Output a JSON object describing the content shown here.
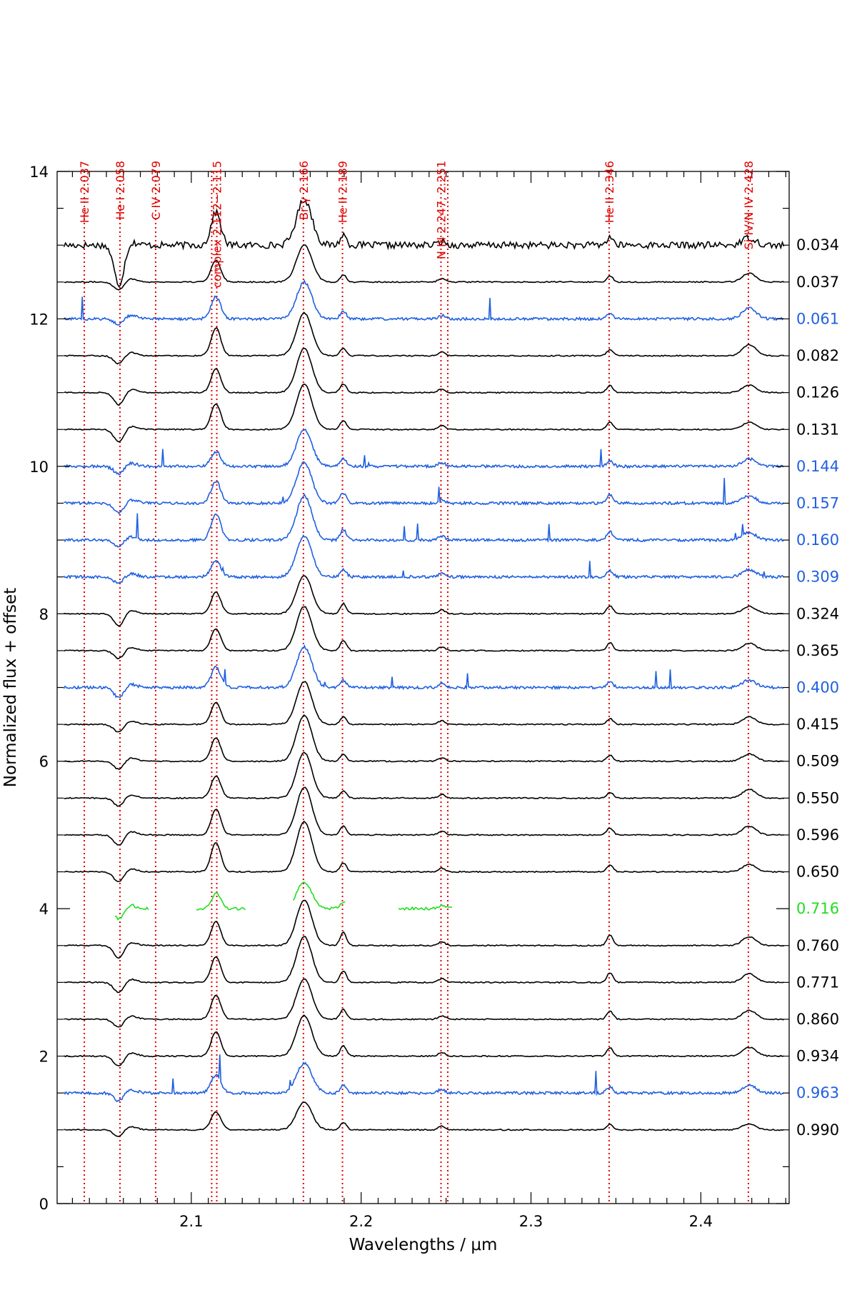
{
  "chart_data": {
    "type": "line",
    "title": "",
    "xlabel": "Wavelengths / μm",
    "ylabel": "Normalized flux + offset",
    "xlim": [
      2.021,
      2.452
    ],
    "ylim": [
      0,
      14
    ],
    "x_ticks": [
      2.1,
      2.2,
      2.3,
      2.4
    ],
    "x_tick_labels": [
      "2.1",
      "2.2",
      "2.3",
      "2.4"
    ],
    "y_ticks": [
      0,
      2,
      4,
      6,
      8,
      10,
      12,
      14
    ],
    "y_tick_labels": [
      "0",
      "2",
      "4",
      "6",
      "8",
      "10",
      "12",
      "14"
    ],
    "grid": false,
    "colors": {
      "black": "#000000",
      "blue": "#1f5fe0",
      "green": "#22dd22",
      "line_marker": "#e00000"
    },
    "line_markers": [
      {
        "x": 2.037,
        "label": "He II 2.037"
      },
      {
        "x": 2.058,
        "label": "He I 2.058"
      },
      {
        "x": 2.079,
        "label": "C IV 2.079"
      },
      {
        "x": 2.112,
        "label": ""
      },
      {
        "x": 2.115,
        "label": "complex 2.112−2.115"
      },
      {
        "x": 2.166,
        "label": "Br γ 2.166"
      },
      {
        "x": 2.189,
        "label": "He II 2.189"
      },
      {
        "x": 2.247,
        "label": "N III 2.247, 2.251"
      },
      {
        "x": 2.251,
        "label": ""
      },
      {
        "x": 2.346,
        "label": "He II 2.346"
      },
      {
        "x": 2.428,
        "label": "Si IV/N IV 2.428"
      }
    ],
    "series": [
      {
        "name": "0.034",
        "offset": 13.0,
        "color": "black",
        "noise": 0.045,
        "brg": 0.62,
        "cplx": 0.45,
        "heii": 0.14,
        "siiv": 0.1,
        "hei_abs": 0.55
      },
      {
        "name": "0.037",
        "offset": 12.5,
        "color": "black",
        "noise": 0.008,
        "brg": 0.5,
        "cplx": 0.3,
        "heii": 0.1,
        "siiv": 0.12,
        "hei_abs": 0.12
      },
      {
        "name": "0.061",
        "offset": 12.0,
        "color": "blue",
        "noise": 0.018,
        "brg": 0.5,
        "cplx": 0.3,
        "heii": 0.1,
        "siiv": 0.15,
        "hei_abs": 0.08
      },
      {
        "name": "0.082",
        "offset": 11.5,
        "color": "black",
        "noise": 0.008,
        "brg": 0.58,
        "cplx": 0.38,
        "heii": 0.1,
        "siiv": 0.15,
        "hei_abs": 0.12
      },
      {
        "name": "0.126",
        "offset": 11.0,
        "color": "black",
        "noise": 0.008,
        "brg": 0.6,
        "cplx": 0.33,
        "heii": 0.12,
        "siiv": 0.1,
        "hei_abs": 0.18
      },
      {
        "name": "0.131",
        "offset": 10.5,
        "color": "black",
        "noise": 0.008,
        "brg": 0.62,
        "cplx": 0.35,
        "heii": 0.12,
        "siiv": 0.1,
        "hei_abs": 0.18
      },
      {
        "name": "0.144",
        "offset": 10.0,
        "color": "blue",
        "noise": 0.018,
        "brg": 0.5,
        "cplx": 0.2,
        "heii": 0.1,
        "siiv": 0.1,
        "hei_abs": 0.12
      },
      {
        "name": "0.157",
        "offset": 9.5,
        "color": "blue",
        "noise": 0.018,
        "brg": 0.55,
        "cplx": 0.3,
        "heii": 0.14,
        "siiv": 0.1,
        "hei_abs": 0.15
      },
      {
        "name": "0.160",
        "offset": 9.0,
        "color": "blue",
        "noise": 0.018,
        "brg": 0.6,
        "cplx": 0.35,
        "heii": 0.14,
        "siiv": 0.1,
        "hei_abs": 0.1
      },
      {
        "name": "0.309",
        "offset": 8.5,
        "color": "blue",
        "noise": 0.018,
        "brg": 0.55,
        "cplx": 0.22,
        "heii": 0.1,
        "siiv": 0.1,
        "hei_abs": 0.1
      },
      {
        "name": "0.324",
        "offset": 8.0,
        "color": "black",
        "noise": 0.008,
        "brg": 0.52,
        "cplx": 0.3,
        "heii": 0.14,
        "siiv": 0.1,
        "hei_abs": 0.18
      },
      {
        "name": "0.365",
        "offset": 7.5,
        "color": "black",
        "noise": 0.008,
        "brg": 0.6,
        "cplx": 0.3,
        "heii": 0.14,
        "siiv": 0.1,
        "hei_abs": 0.12
      },
      {
        "name": "0.400",
        "offset": 7.0,
        "color": "blue",
        "noise": 0.018,
        "brg": 0.55,
        "cplx": 0.28,
        "heii": 0.1,
        "siiv": 0.1,
        "hei_abs": 0.15
      },
      {
        "name": "0.415",
        "offset": 6.5,
        "color": "black",
        "noise": 0.008,
        "brg": 0.58,
        "cplx": 0.3,
        "heii": 0.1,
        "siiv": 0.1,
        "hei_abs": 0.12
      },
      {
        "name": "0.509",
        "offset": 6.0,
        "color": "black",
        "noise": 0.008,
        "brg": 0.62,
        "cplx": 0.32,
        "heii": 0.1,
        "siiv": 0.1,
        "hei_abs": 0.12
      },
      {
        "name": "0.550",
        "offset": 5.5,
        "color": "black",
        "noise": 0.008,
        "brg": 0.62,
        "cplx": 0.3,
        "heii": 0.1,
        "siiv": 0.12,
        "hei_abs": 0.12
      },
      {
        "name": "0.596",
        "offset": 5.0,
        "color": "black",
        "noise": 0.008,
        "brg": 0.65,
        "cplx": 0.35,
        "heii": 0.12,
        "siiv": 0.12,
        "hei_abs": 0.15
      },
      {
        "name": "0.650",
        "offset": 4.5,
        "color": "black",
        "noise": 0.008,
        "brg": 0.68,
        "cplx": 0.4,
        "heii": 0.12,
        "siiv": 0.1,
        "hei_abs": 0.15
      },
      {
        "name": "0.716",
        "offset": 4.0,
        "color": "green",
        "noise": 0.02,
        "brg": 0.35,
        "cplx": 0.2,
        "heii": 0.1,
        "siiv": 0.0,
        "hei_abs": 0.15,
        "segments": [
          [
            2.055,
            2.075
          ],
          [
            2.103,
            2.132
          ],
          [
            2.16,
            2.191
          ],
          [
            2.222,
            2.254
          ]
        ]
      },
      {
        "name": "0.760",
        "offset": 3.5,
        "color": "black",
        "noise": 0.008,
        "brg": 0.62,
        "cplx": 0.33,
        "heii": 0.18,
        "siiv": 0.12,
        "hei_abs": 0.18
      },
      {
        "name": "0.771",
        "offset": 3.0,
        "color": "black",
        "noise": 0.008,
        "brg": 0.62,
        "cplx": 0.35,
        "heii": 0.16,
        "siiv": 0.12,
        "hei_abs": 0.15
      },
      {
        "name": "0.860",
        "offset": 2.5,
        "color": "black",
        "noise": 0.008,
        "brg": 0.55,
        "cplx": 0.33,
        "heii": 0.14,
        "siiv": 0.12,
        "hei_abs": 0.12
      },
      {
        "name": "0.934",
        "offset": 2.0,
        "color": "black",
        "noise": 0.008,
        "brg": 0.55,
        "cplx": 0.33,
        "heii": 0.14,
        "siiv": 0.12,
        "hei_abs": 0.15
      },
      {
        "name": "0.963",
        "offset": 1.5,
        "color": "blue",
        "noise": 0.018,
        "brg": 0.4,
        "cplx": 0.25,
        "heii": 0.1,
        "siiv": 0.1,
        "hei_abs": 0.12
      },
      {
        "name": "0.990",
        "offset": 1.0,
        "color": "black",
        "noise": 0.008,
        "brg": 0.38,
        "cplx": 0.25,
        "heii": 0.1,
        "siiv": 0.08,
        "hei_abs": 0.1
      }
    ]
  }
}
